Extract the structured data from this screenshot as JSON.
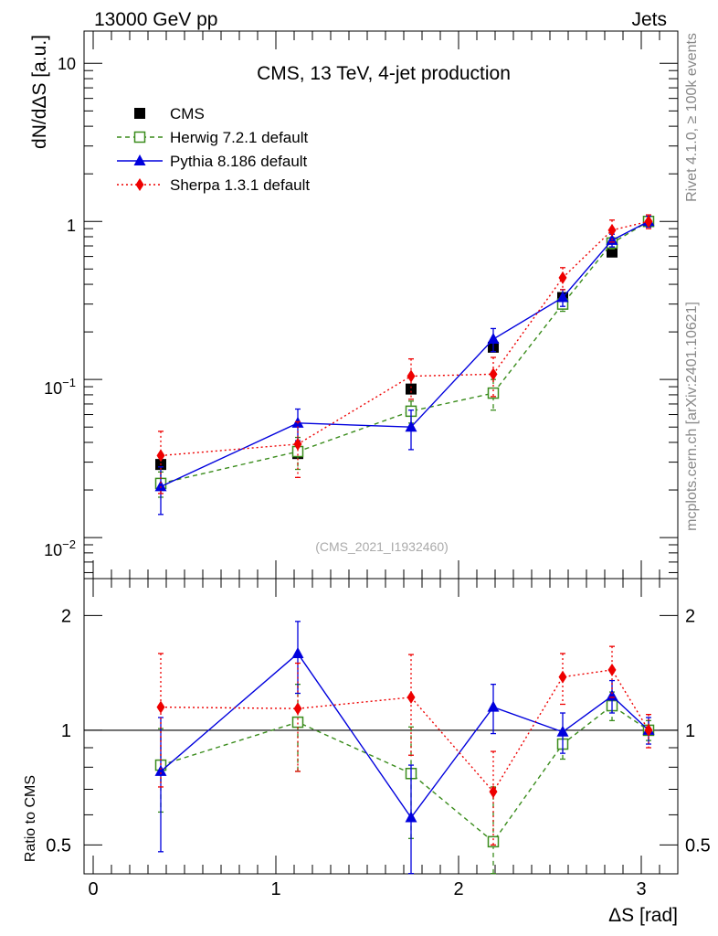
{
  "header": {
    "left": "13000 GeV pp",
    "right": "Jets"
  },
  "side": {
    "rivet": "Rivet 4.1.0, ≥ 100k events",
    "site": "mcplots.cern.ch [arXiv:2401.10621]"
  },
  "chart_data": [
    {
      "type": "scatter",
      "title": "CMS, 13 TeV, 4-jet production",
      "analysis_tag": "(CMS_2021_I1932460)",
      "ylabel": "dN/dΔS [a.u.]",
      "yscale": "log",
      "ylim": [
        0.0055,
        16
      ],
      "xlim": [
        -0.05,
        3.2
      ],
      "ytick_labels": {
        "mantissa": "10",
        "exp_m2": "−2",
        "exp_m1": "−1",
        "one": "1",
        "ten": "10"
      },
      "legend_placement": "top-left",
      "x": [
        0.37,
        1.12,
        1.74,
        2.19,
        2.57,
        2.84,
        3.04
      ],
      "series": [
        {
          "name": "CMS",
          "style": "data",
          "color": "#000000",
          "values": [
            0.029,
            0.034,
            0.087,
            0.16,
            0.33,
            0.64,
            1.0
          ]
        },
        {
          "name": "Herwig 7.2.1 default",
          "style": "dashed",
          "marker": "open-square",
          "color": "#3a8c1c",
          "values": [
            0.022,
            0.035,
            0.063,
            0.082,
            0.3,
            0.73,
            1.0
          ],
          "errors": [
            0.004,
            0.008,
            0.01,
            0.018,
            0.03,
            0.06,
            0.06
          ]
        },
        {
          "name": "Pythia 8.186 default",
          "style": "solid",
          "marker": "triangle",
          "color": "#0000dd",
          "values": [
            0.021,
            0.053,
            0.05,
            0.18,
            0.33,
            0.76,
            1.0
          ],
          "errors": [
            0.007,
            0.012,
            0.014,
            0.03,
            0.04,
            0.07,
            0.08
          ]
        },
        {
          "name": "Sherpa 1.3.1 default",
          "style": "dotted",
          "marker": "diamond",
          "color": "#ee0000",
          "values": [
            0.033,
            0.039,
            0.105,
            0.108,
            0.44,
            0.88,
            1.0
          ],
          "errors": [
            0.014,
            0.015,
            0.03,
            0.03,
            0.07,
            0.14,
            0.1
          ]
        }
      ]
    },
    {
      "type": "scatter",
      "ylabel": "Ratio to CMS",
      "xlabel": "ΔS [rad]",
      "yscale": "log",
      "ylim": [
        0.42,
        2.5
      ],
      "xlim": [
        -0.05,
        3.2
      ],
      "reference_line": 1,
      "yticks": [
        0.5,
        1,
        2
      ],
      "ytick_labels": [
        "0.5",
        "1",
        "2"
      ],
      "xticks": [
        0,
        1,
        2,
        3
      ],
      "xtick_labels": [
        "0",
        "1",
        "2",
        "3"
      ],
      "x": [
        0.37,
        1.12,
        1.74,
        2.19,
        2.57,
        2.84,
        3.04
      ],
      "series": [
        {
          "name": "Herwig 7.2.1 default",
          "color": "#3a8c1c",
          "values": [
            0.81,
            1.05,
            0.77,
            0.51,
            0.92,
            1.16,
            1.0
          ],
          "errors": [
            0.2,
            0.27,
            0.25,
            0.2,
            0.08,
            0.1,
            0.06
          ]
        },
        {
          "name": "Pythia 8.186 default",
          "color": "#0000dd",
          "values": [
            0.78,
            1.59,
            0.59,
            1.15,
            0.99,
            1.23,
            1.0
          ],
          "errors": [
            0.3,
            0.34,
            0.22,
            0.17,
            0.12,
            0.12,
            0.08
          ]
        },
        {
          "name": "Sherpa 1.3.1 default",
          "color": "#ee0000",
          "values": [
            1.15,
            1.14,
            1.22,
            0.69,
            1.38,
            1.44,
            1.0
          ],
          "errors": [
            0.44,
            0.36,
            0.36,
            0.19,
            0.21,
            0.22,
            0.1
          ]
        }
      ]
    }
  ]
}
